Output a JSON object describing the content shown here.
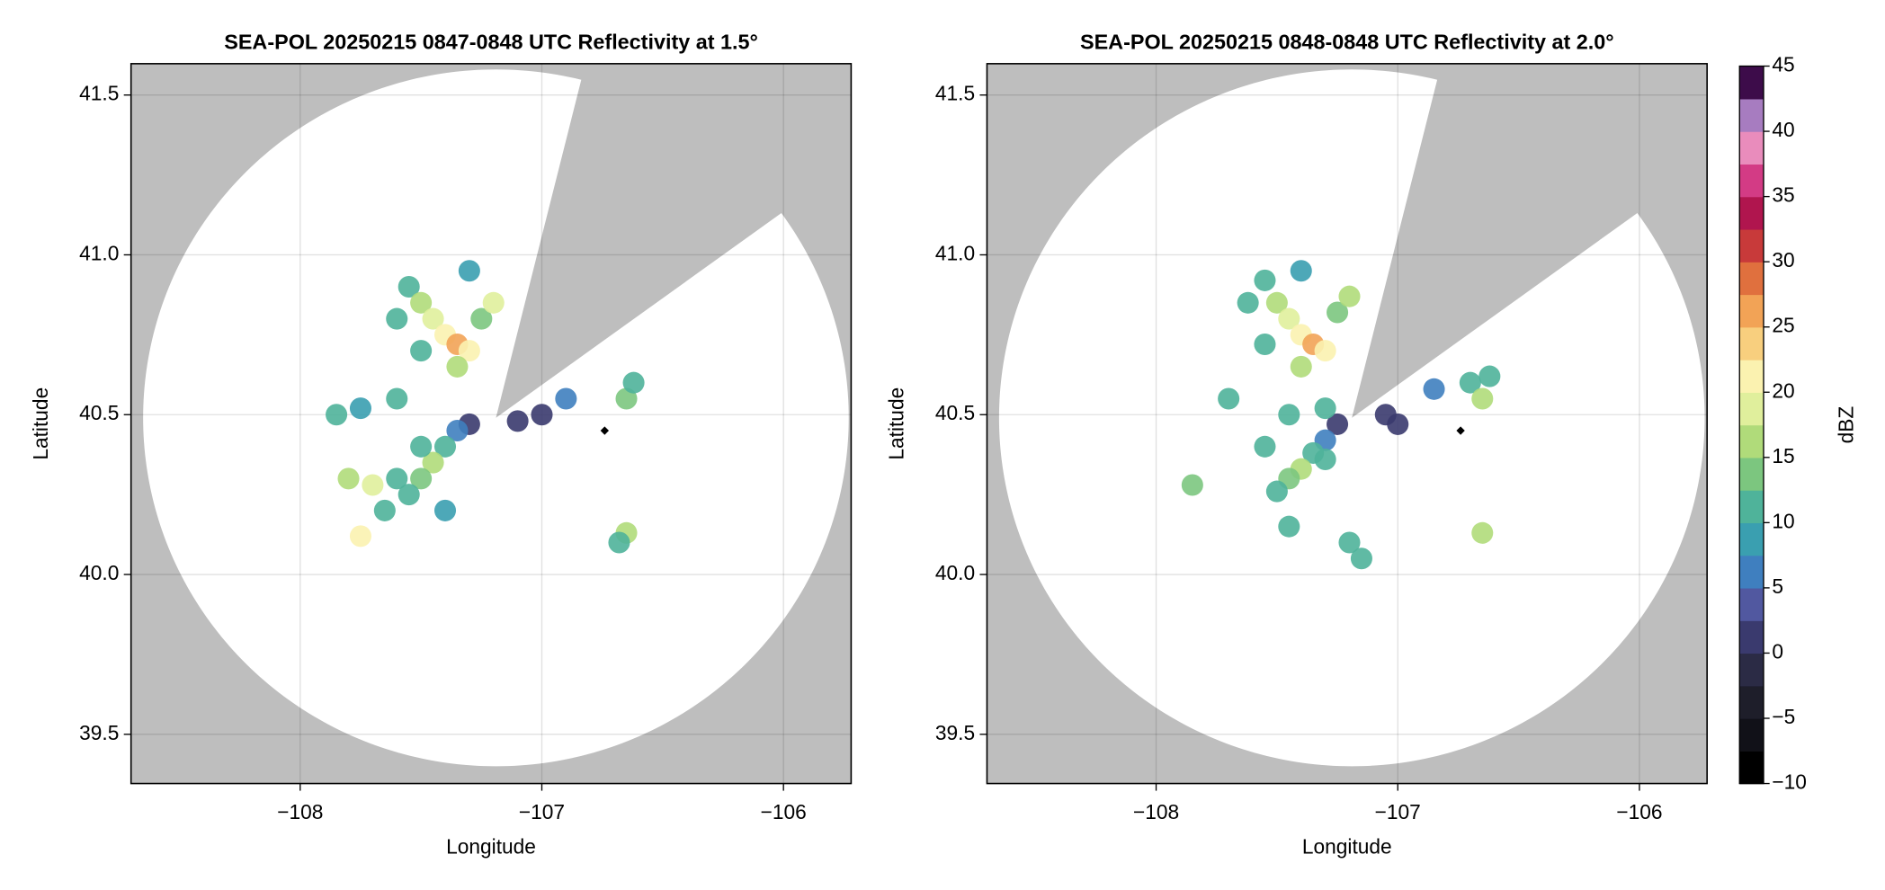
{
  "chart_data": [
    {
      "type": "radar",
      "title": "SEA-POL 20250215 0847-0848 UTC Reflectivity at 1.5°",
      "xlabel": "Longitude",
      "ylabel": "Latitude",
      "xlim": [
        -108.7,
        -105.72
      ],
      "ylim": [
        39.346,
        41.598
      ],
      "xticks": [
        {
          "value": -108,
          "label": "−108"
        },
        {
          "value": -107,
          "label": "−107"
        },
        {
          "value": -106,
          "label": "−106"
        }
      ],
      "yticks": [
        39.5,
        {
          "value": 40.0,
          "label": "40.0"
        },
        40.5,
        {
          "value": 41.0,
          "label": "41.0"
        },
        41.5
      ],
      "grid": true,
      "background": "#bebebe",
      "coverage": {
        "center_lon": -107.19,
        "center_lat": 40.49,
        "range_lon": 1.46,
        "range_lat": 1.09,
        "blocked_azimuths": [
          14,
          54
        ],
        "color": "#ffffff"
      },
      "echoes": {
        "lon": [
          -107.55,
          -107.5,
          -107.45,
          -107.4,
          -107.35,
          -107.3,
          -107.35,
          -107.5,
          -107.25,
          -107.2,
          -107.6,
          -107.3,
          -107.3,
          -107.35,
          -107.4,
          -107.45,
          -107.5,
          -107.55,
          -107.6,
          -107.7,
          -107.8,
          -107.65,
          -107.75,
          -107.4,
          -107.5,
          -107.85,
          -107.75,
          -107.6,
          -107.0,
          -107.1,
          -106.9,
          -106.65,
          -106.62,
          -106.65,
          -106.68
        ],
        "lat": [
          40.9,
          40.85,
          40.8,
          40.75,
          40.72,
          40.7,
          40.65,
          40.7,
          40.8,
          40.85,
          40.8,
          40.95,
          40.47,
          40.45,
          40.4,
          40.35,
          40.3,
          40.25,
          40.3,
          40.28,
          40.3,
          40.2,
          40.12,
          40.2,
          40.4,
          40.5,
          40.52,
          40.55,
          40.5,
          40.48,
          40.55,
          40.55,
          40.6,
          40.13,
          40.1
        ],
        "dbz": [
          12,
          15,
          18,
          22,
          25,
          20,
          15,
          12,
          14,
          18,
          10,
          8,
          0,
          5,
          12,
          16,
          14,
          10,
          12,
          18,
          15,
          10,
          20,
          8,
          12,
          10,
          8,
          12,
          2,
          0,
          5,
          14,
          10,
          15,
          12
        ]
      },
      "marker": {
        "lon": -106.74,
        "lat": 40.45,
        "color": "#000000"
      }
    },
    {
      "type": "radar",
      "title": "SEA-POL 20250215 0848-0848 UTC Reflectivity at 2.0°",
      "xlabel": "Longitude",
      "ylabel": "Latitude",
      "xlim": [
        -108.7,
        -105.72
      ],
      "ylim": [
        39.346,
        41.598
      ],
      "xticks": [
        {
          "value": -108,
          "label": "−108"
        },
        {
          "value": -107,
          "label": "−107"
        },
        {
          "value": -106,
          "label": "−106"
        }
      ],
      "yticks": [
        39.5,
        {
          "value": 40.0,
          "label": "40.0"
        },
        40.5,
        {
          "value": 41.0,
          "label": "41.0"
        },
        41.5
      ],
      "grid": true,
      "background": "#bebebe",
      "coverage": {
        "center_lon": -107.19,
        "center_lat": 40.49,
        "range_lon": 1.46,
        "range_lat": 1.09,
        "blocked_azimuths": [
          14,
          54
        ],
        "color": "#ffffff"
      },
      "echoes": {
        "lon": [
          -107.55,
          -107.5,
          -107.45,
          -107.4,
          -107.35,
          -107.3,
          -107.4,
          -107.55,
          -107.25,
          -107.2,
          -107.62,
          -107.4,
          -107.25,
          -107.3,
          -107.35,
          -107.4,
          -107.45,
          -107.5,
          -107.3,
          -107.55,
          -107.85,
          -107.7,
          -107.45,
          -107.2,
          -107.15,
          -107.05,
          -107.0,
          -106.85,
          -106.7,
          -106.65,
          -106.62,
          -106.65,
          -107.45,
          -107.3
        ],
        "lat": [
          40.92,
          40.85,
          40.8,
          40.75,
          40.72,
          40.7,
          40.65,
          40.72,
          40.82,
          40.87,
          40.85,
          40.95,
          40.47,
          40.42,
          40.38,
          40.33,
          40.3,
          40.26,
          40.36,
          40.4,
          40.28,
          40.55,
          40.15,
          40.1,
          40.05,
          40.5,
          40.47,
          40.58,
          40.6,
          40.55,
          40.62,
          40.13,
          40.5,
          40.52
        ],
        "dbz": [
          12,
          15,
          18,
          22,
          25,
          22,
          16,
          12,
          14,
          16,
          10,
          8,
          0,
          5,
          12,
          16,
          14,
          12,
          10,
          12,
          14,
          10,
          10,
          10,
          12,
          2,
          0,
          5,
          12,
          15,
          10,
          15,
          10,
          12
        ]
      },
      "marker": {
        "lon": -106.74,
        "lat": 40.45,
        "color": "#000000"
      },
      "colorbar": {
        "label": "dBZ",
        "lim": [
          -10,
          45
        ],
        "ticks": [
          {
            "value": -10,
            "label": "−10"
          },
          {
            "value": -5,
            "label": "−5"
          },
          0,
          5,
          10,
          15,
          20,
          25,
          30,
          35,
          40,
          45
        ],
        "colors": [
          "#000000",
          "#111118",
          "#1e1e2a",
          "#2b2b45",
          "#3a3a6e",
          "#5158a0",
          "#3f7fbf",
          "#3a9fb0",
          "#4fb39a",
          "#7cc67f",
          "#b0db7a",
          "#e0ef9c",
          "#fbf2b0",
          "#f8cf7e",
          "#f2a356",
          "#e0703e",
          "#c83a3a",
          "#b0154e",
          "#d33b85",
          "#e98cbc",
          "#a77cc0",
          "#3d0c4a"
        ]
      }
    }
  ]
}
